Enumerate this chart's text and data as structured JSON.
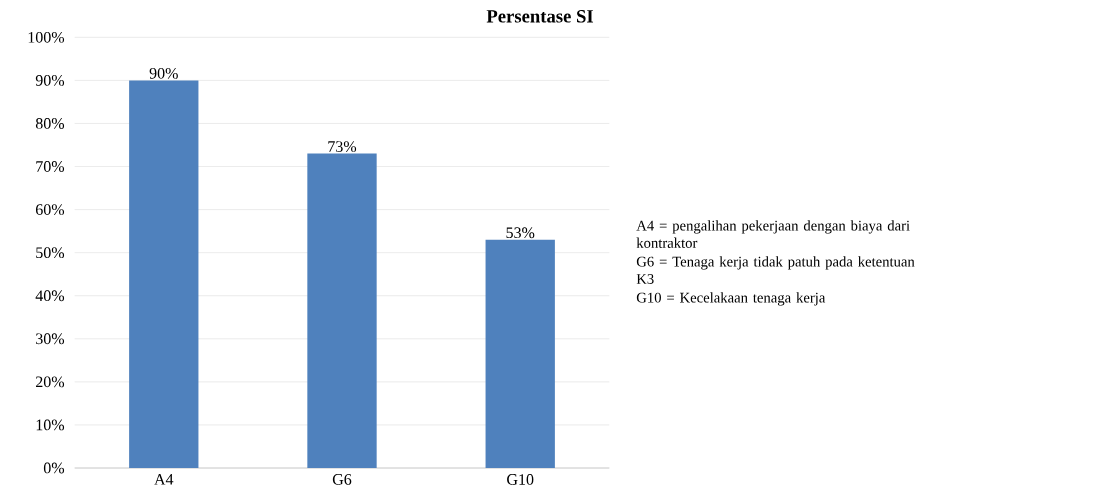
{
  "chart_data": {
    "type": "bar",
    "title": "Persentase SI",
    "categories": [
      "A4",
      "G6",
      "G10"
    ],
    "values": [
      90,
      73,
      53
    ],
    "value_labels": [
      "90%",
      "73%",
      "53%"
    ],
    "color": "#4f81bd",
    "ylim": [
      0,
      100
    ],
    "yticks": [
      {
        "value": 0,
        "label": "0%"
      },
      {
        "value": 10,
        "label": "10%"
      },
      {
        "value": 20,
        "label": "20%"
      },
      {
        "value": 30,
        "label": "30%"
      },
      {
        "value": 40,
        "label": "40%"
      },
      {
        "value": 50,
        "label": "50%"
      },
      {
        "value": 60,
        "label": "60%"
      },
      {
        "value": 70,
        "label": "70%"
      },
      {
        "value": 80,
        "label": "80%"
      },
      {
        "value": 90,
        "label": "90%"
      },
      {
        "value": 100,
        "label": "100%"
      }
    ],
    "grid": "y",
    "annotations": [
      "A4 = pengalihan pekerjaan dengan biaya dari kontraktor",
      "G6 = Tenaga kerja tidak patuh pada ketentuan K3",
      "G10 = Kecelakaan tenaga kerja"
    ]
  }
}
